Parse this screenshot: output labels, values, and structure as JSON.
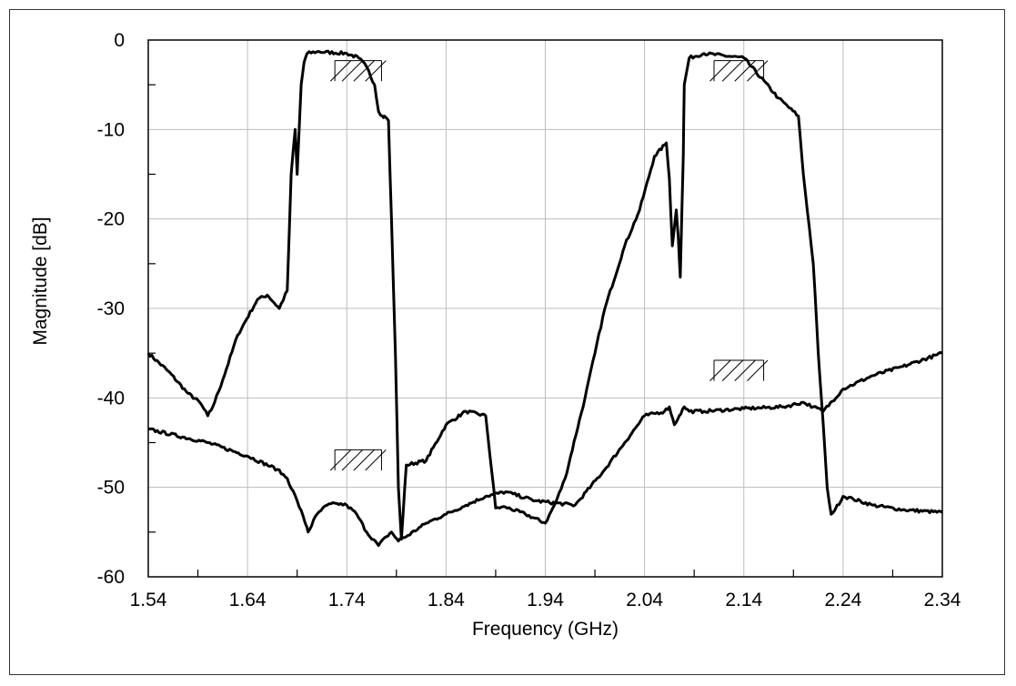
{
  "chart_data": {
    "type": "line",
    "xlabel": "Frequency (GHz)",
    "ylabel": "Magnitude [dB]",
    "xlim": [
      1.54,
      2.34
    ],
    "ylim": [
      -60,
      0
    ],
    "x_ticks": [
      "1.54",
      "1.64",
      "1.74",
      "1.84",
      "1.94",
      "2.04",
      "2.14",
      "2.24",
      "2.34"
    ],
    "y_ticks": [
      "0",
      "-10",
      "-20",
      "-30",
      "-40",
      "-50",
      "-60"
    ],
    "grid": true,
    "line_color": "#000000",
    "series": [
      {
        "x": [
          1.54,
          1.56,
          1.58,
          1.592,
          1.6,
          1.605,
          1.615,
          1.63,
          1.65,
          1.66,
          1.672,
          1.68,
          1.684,
          1.688,
          1.69,
          1.692,
          1.694,
          1.697,
          1.7,
          1.71,
          1.74,
          1.752,
          1.76,
          1.768,
          1.772,
          1.776,
          1.778,
          1.782,
          1.785,
          1.789,
          1.792,
          1.795,
          1.8,
          1.82,
          1.84,
          1.86,
          1.88,
          1.89,
          1.9,
          1.92,
          1.94,
          1.95,
          1.96,
          1.98,
          1.99,
          2.0,
          2.02,
          2.035,
          2.05,
          2.062,
          2.065,
          2.068,
          2.072,
          2.074,
          2.076,
          2.079,
          2.08,
          2.085,
          2.1,
          2.14,
          2.175,
          2.195,
          2.2,
          2.21,
          2.215,
          2.22,
          2.224,
          2.228,
          2.232,
          2.24,
          2.25,
          2.27,
          2.3,
          2.34
        ],
        "y": [
          -35,
          -37,
          -39.5,
          -40.5,
          -42,
          -41,
          -38,
          -33,
          -29,
          -28.5,
          -30,
          -28,
          -15,
          -10,
          -15,
          -10,
          -5,
          -2.5,
          -1.5,
          -1.3,
          -1.5,
          -2,
          -3,
          -5,
          -8,
          -8.5,
          -8.5,
          -9,
          -20,
          -35,
          -50,
          -55.8,
          -47.5,
          -47,
          -43,
          -41.5,
          -42,
          -52.3,
          -52.2,
          -53,
          -54,
          -51.8,
          -49,
          -40,
          -35,
          -30,
          -23,
          -19,
          -13,
          -11.5,
          -15.5,
          -23,
          -19,
          -22,
          -26.5,
          -13,
          -5,
          -2,
          -1.5,
          -2,
          -6.5,
          -8.5,
          -15,
          -25,
          -35,
          -43,
          -50,
          -53,
          -52.5,
          -51,
          -51.3,
          -52,
          -52.5,
          -52.8
        ]
      },
      {
        "x": [
          1.54,
          1.6,
          1.64,
          1.67,
          1.68,
          1.69,
          1.7,
          1.701,
          1.71,
          1.72,
          1.73,
          1.74,
          1.75,
          1.76,
          1.772,
          1.78,
          1.785,
          1.792,
          1.795,
          1.8,
          1.82,
          1.84,
          1.86,
          1.88,
          1.9,
          1.93,
          1.97,
          2.0,
          2.02,
          2.04,
          2.06,
          2.065,
          2.07,
          2.075,
          2.08,
          2.085,
          2.1,
          2.14,
          2.18,
          2.2,
          2.21,
          2.22,
          2.24,
          2.27,
          2.3,
          2.34
        ],
        "y": [
          -43.5,
          -45,
          -46.5,
          -48,
          -49,
          -51.5,
          -54.5,
          -55,
          -53,
          -52,
          -51.8,
          -52,
          -53,
          -55,
          -56.5,
          -55.5,
          -55,
          -56,
          -55.7,
          -55.5,
          -54,
          -53,
          -52,
          -51,
          -50.5,
          -51.5,
          -52,
          -48,
          -45,
          -42,
          -41.5,
          -41,
          -43,
          -42,
          -41,
          -41.5,
          -41.5,
          -41.2,
          -41,
          -40.5,
          -41,
          -41.5,
          -39,
          -37.5,
          -36.5,
          -35
        ]
      }
    ],
    "annotations": [
      {
        "type": "hatch-box",
        "x0": 1.728,
        "x1": 1.775,
        "y_top": -2.3,
        "y_bottom": -4.6
      },
      {
        "type": "hatch-box",
        "x0": 2.11,
        "x1": 2.16,
        "y_top": -2.3,
        "y_bottom": -4.6
      },
      {
        "type": "hatch-box",
        "x0": 1.728,
        "x1": 1.775,
        "y_top": -45.8,
        "y_bottom": -48.1
      },
      {
        "type": "hatch-box",
        "x0": 2.11,
        "x1": 2.16,
        "y_top": -35.8,
        "y_bottom": -38.1
      }
    ]
  }
}
